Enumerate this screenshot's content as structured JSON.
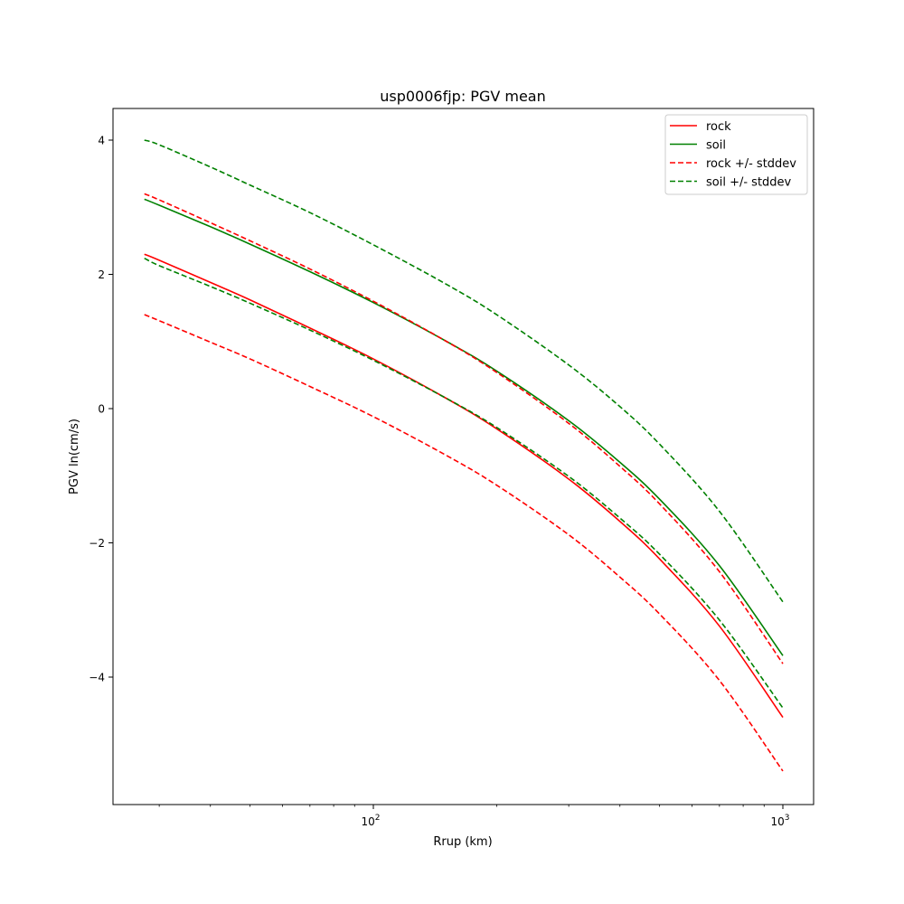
{
  "chart_data": {
    "type": "line",
    "title": "usp0006fjp: PGV mean",
    "xlabel": "Rrup (km)",
    "ylabel": "PGV ln(cm/s)",
    "xscale": "log",
    "xlim": [
      23,
      1190
    ],
    "ylim": [
      -5.9,
      4.47
    ],
    "grid": false,
    "legend_position": "top-right",
    "x_ticks": [
      {
        "value": 100,
        "base": "10",
        "exp": "2"
      },
      {
        "value": 1000,
        "base": "10",
        "exp": "3"
      }
    ],
    "y_ticks": [
      {
        "value": 4,
        "label": "4"
      },
      {
        "value": 2,
        "label": "2"
      },
      {
        "value": 0,
        "label": "0"
      },
      {
        "value": -2,
        "label": "−2"
      },
      {
        "value": -4,
        "label": "−4"
      }
    ],
    "x": [
      27.6,
      30,
      40,
      50,
      70,
      100,
      150,
      200,
      300,
      400,
      500,
      700,
      1000
    ],
    "series": [
      {
        "name": "rock",
        "color": "#ff0000",
        "dash": false,
        "values": [
          2.3,
          2.21,
          1.88,
          1.62,
          1.2,
          0.74,
          0.16,
          -0.3,
          -1.05,
          -1.68,
          -2.24,
          -3.24,
          -4.6
        ]
      },
      {
        "name": "soil",
        "color": "#008000",
        "dash": false,
        "values": [
          3.12,
          3.03,
          2.71,
          2.45,
          2.04,
          1.58,
          1.01,
          0.56,
          -0.18,
          -0.8,
          -1.35,
          -2.34,
          -3.68
        ]
      },
      {
        "name": "rock +/- stddev",
        "color": "#ff0000",
        "dash": true,
        "values": [
          3.2,
          3.11,
          2.77,
          2.5,
          2.08,
          1.6,
          1.01,
          0.54,
          -0.22,
          -0.86,
          -1.42,
          -2.43,
          -3.8
        ],
        "values_lower": [
          1.4,
          1.31,
          0.99,
          0.74,
          0.33,
          -0.12,
          -0.69,
          -1.14,
          -1.88,
          -2.51,
          -3.06,
          -4.05,
          -5.4
        ]
      },
      {
        "name": "soil +/- stddev",
        "color": "#008000",
        "dash": true,
        "values": [
          4.0,
          3.93,
          3.6,
          3.33,
          2.92,
          2.44,
          1.86,
          1.4,
          0.65,
          0.03,
          -0.53,
          -1.53,
          -2.88
        ],
        "values_lower": [
          2.24,
          2.13,
          1.82,
          1.57,
          1.17,
          0.72,
          0.16,
          -0.28,
          -1.01,
          -1.63,
          -2.17,
          -3.15,
          -4.46
        ]
      }
    ]
  }
}
